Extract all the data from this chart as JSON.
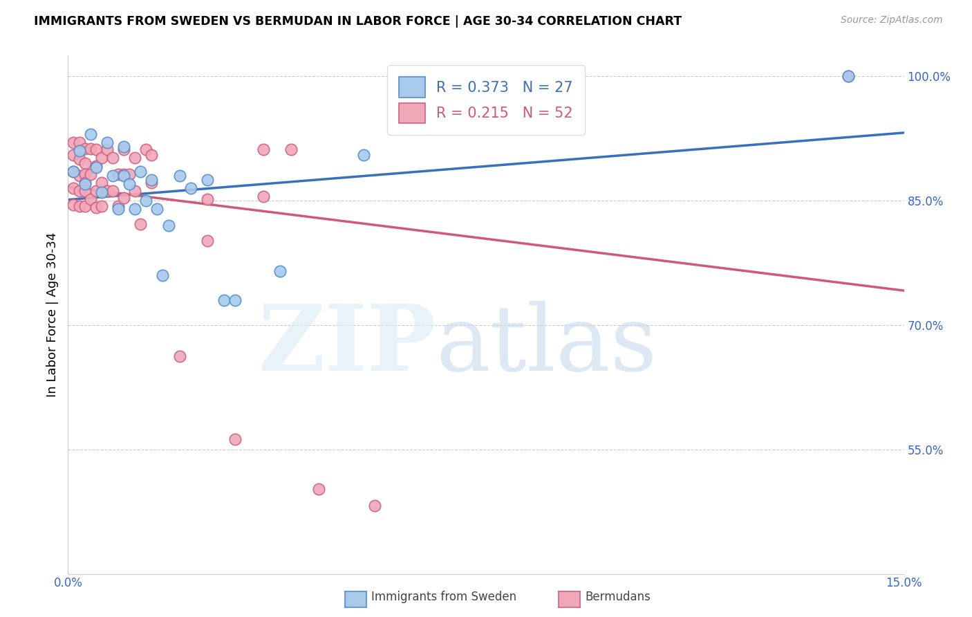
{
  "title": "IMMIGRANTS FROM SWEDEN VS BERMUDAN IN LABOR FORCE | AGE 30-34 CORRELATION CHART",
  "source": "Source: ZipAtlas.com",
  "ylabel": "In Labor Force | Age 30-34",
  "xlim": [
    0.0,
    0.15
  ],
  "ylim": [
    0.4,
    1.025
  ],
  "yticks": [
    0.55,
    0.7,
    0.85,
    1.0
  ],
  "ytick_labels": [
    "55.0%",
    "70.0%",
    "85.0%",
    "100.0%"
  ],
  "xtick_positions": [
    0.0,
    0.015,
    0.03,
    0.045,
    0.06,
    0.075,
    0.09,
    0.105,
    0.12,
    0.135,
    0.15
  ],
  "sweden_color": "#A8CAEA",
  "sweden_edge_color": "#5090D0",
  "bermuda_color": "#F0A8B8",
  "bermuda_edge_color": "#D06080",
  "sweden_line_color": "#3A6FC0",
  "bermuda_line_color": "#D05878",
  "sweden_R": 0.373,
  "sweden_N": 27,
  "bermuda_R": 0.215,
  "bermuda_N": 52,
  "sweden_x": [
    0.001,
    0.002,
    0.003,
    0.004,
    0.005,
    0.006,
    0.007,
    0.008,
    0.009,
    0.01,
    0.01,
    0.011,
    0.012,
    0.013,
    0.014,
    0.015,
    0.016,
    0.017,
    0.018,
    0.02,
    0.022,
    0.025,
    0.028,
    0.03,
    0.038,
    0.053,
    0.14
  ],
  "sweden_y": [
    0.885,
    0.91,
    0.87,
    0.93,
    0.89,
    0.86,
    0.92,
    0.88,
    0.84,
    0.915,
    0.88,
    0.87,
    0.84,
    0.885,
    0.85,
    0.875,
    0.84,
    0.76,
    0.82,
    0.88,
    0.865,
    0.875,
    0.73,
    0.73,
    0.765,
    0.905,
    1.0
  ],
  "bermuda_x": [
    0.001,
    0.001,
    0.001,
    0.001,
    0.001,
    0.002,
    0.002,
    0.002,
    0.002,
    0.002,
    0.003,
    0.003,
    0.003,
    0.003,
    0.003,
    0.003,
    0.004,
    0.004,
    0.004,
    0.005,
    0.005,
    0.005,
    0.005,
    0.006,
    0.006,
    0.006,
    0.007,
    0.007,
    0.008,
    0.008,
    0.009,
    0.009,
    0.01,
    0.01,
    0.01,
    0.011,
    0.012,
    0.012,
    0.013,
    0.014,
    0.015,
    0.015,
    0.02,
    0.025,
    0.025,
    0.03,
    0.035,
    0.035,
    0.04,
    0.045,
    0.055,
    0.14
  ],
  "bermuda_y": [
    0.92,
    0.905,
    0.885,
    0.865,
    0.845,
    0.92,
    0.9,
    0.88,
    0.862,
    0.843,
    0.913,
    0.895,
    0.882,
    0.872,
    0.862,
    0.843,
    0.913,
    0.882,
    0.852,
    0.912,
    0.892,
    0.862,
    0.842,
    0.902,
    0.872,
    0.843,
    0.912,
    0.862,
    0.902,
    0.862,
    0.882,
    0.843,
    0.912,
    0.882,
    0.853,
    0.882,
    0.902,
    0.862,
    0.822,
    0.912,
    0.905,
    0.872,
    0.662,
    0.852,
    0.802,
    0.562,
    0.912,
    0.855,
    0.912,
    0.502,
    0.482,
    1.0
  ]
}
